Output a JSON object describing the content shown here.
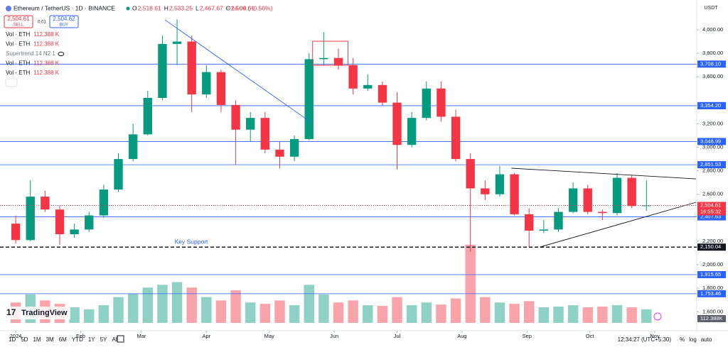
{
  "header": {
    "symbol": "Ethereum / TetherUS · 1D · BINANCE",
    "ohlc": [
      {
        "label": "O",
        "value": "2,518.61"
      },
      {
        "label": "H",
        "value": "2,533.25"
      },
      {
        "label": "L",
        "value": "2,467.67"
      },
      {
        "label": "C",
        "value": "2,504.61"
      }
    ],
    "change": "−14.00 (−0.56%)"
  },
  "trade": {
    "sell_price": "2,504.61",
    "sell": "SELL",
    "spread": "0.01",
    "buy_price": "2,504.62",
    "buy": "BUY"
  },
  "indicators": [
    {
      "name": "Vol · ETH",
      "value": "112.388 K"
    },
    {
      "name": "Vol · ETH",
      "value": "112.388 K"
    },
    {
      "name": "Supertrend 14 N2 1",
      "value": null
    },
    {
      "name": "Vol · ETH",
      "value": "112.388 K"
    },
    {
      "name": "Vol · ETH",
      "value": "112.388 K"
    }
  ],
  "chart_data": {
    "type": "candlestick",
    "currency": "USDT",
    "up_color": "#089981",
    "down_color": "#f23645",
    "x": [
      0,
      7,
      14,
      21,
      28,
      35,
      42,
      49,
      56,
      63,
      70,
      77,
      84,
      91,
      98,
      105,
      112,
      119,
      126,
      133,
      140,
      147,
      154,
      161,
      168,
      175,
      182,
      189,
      196,
      203,
      210,
      217,
      224,
      231,
      238,
      245,
      252,
      259,
      266,
      273,
      280,
      287,
      294,
      301
    ],
    "open": [
      2350,
      2210,
      2580,
      2470,
      2260,
      2300,
      2420,
      2640,
      2900,
      3110,
      3420,
      3880,
      3900,
      3450,
      3640,
      3360,
      3150,
      3250,
      2980,
      2920,
      3070,
      3750,
      3760,
      3700,
      3500,
      3530,
      3380,
      3020,
      3250,
      3500,
      3260,
      2900,
      2650,
      2600,
      2770,
      2430,
      2290,
      2300,
      2450,
      2650,
      2450,
      2440,
      2740,
      2500
    ],
    "high": [
      2420,
      2720,
      2630,
      2500,
      2350,
      2450,
      2680,
      2950,
      3200,
      3480,
      3950,
      4090,
      3950,
      3700,
      3660,
      3400,
      3300,
      3300,
      3050,
      3100,
      3800,
      3980,
      3840,
      3760,
      3620,
      3560,
      3470,
      3300,
      3560,
      3560,
      3320,
      2950,
      2720,
      2840,
      2780,
      2480,
      2380,
      2480,
      2700,
      2680,
      2470,
      2780,
      2760,
      2720
    ],
    "low": [
      2180,
      2200,
      2450,
      2170,
      2230,
      2280,
      2400,
      2620,
      2880,
      3100,
      3400,
      3700,
      3300,
      3420,
      3300,
      2850,
      3050,
      2950,
      2820,
      2880,
      3060,
      3700,
      3660,
      3450,
      3480,
      3350,
      2810,
      3000,
      3230,
      3220,
      2880,
      2110,
      2550,
      2580,
      2420,
      2150,
      2270,
      2280,
      2440,
      2430,
      2380,
      2420,
      2480,
      2460
    ],
    "close": [
      2210,
      2580,
      2470,
      2260,
      2300,
      2420,
      2640,
      2900,
      3110,
      3420,
      3880,
      3900,
      3450,
      3640,
      3360,
      3150,
      3250,
      2980,
      2920,
      3070,
      3750,
      3760,
      3700,
      3500,
      3530,
      3380,
      3020,
      3250,
      3500,
      3260,
      2900,
      2650,
      2600,
      2770,
      2430,
      2290,
      2300,
      2450,
      2650,
      2450,
      2440,
      2740,
      2500,
      2505
    ],
    "volume": [
      300,
      420,
      330,
      280,
      230,
      200,
      260,
      380,
      430,
      520,
      560,
      600,
      520,
      380,
      330,
      480,
      300,
      280,
      330,
      260,
      560,
      420,
      300,
      330,
      260,
      250,
      380,
      260,
      300,
      270,
      360,
      1150,
      380,
      300,
      280,
      320,
      230,
      240,
      260,
      230,
      240,
      260,
      230,
      200
    ],
    "vlim": [
      0,
      1200
    ],
    "volume_label": "112.388K",
    "xlim": [
      -7.5,
      325
    ],
    "xticks": [
      {
        "value": 0,
        "label": "2024"
      },
      {
        "value": 31,
        "label": "Feb"
      },
      {
        "value": 60,
        "label": "Mar"
      },
      {
        "value": 91,
        "label": "Apr"
      },
      {
        "value": 121,
        "label": "May"
      },
      {
        "value": 152,
        "label": "Jun"
      },
      {
        "value": 182,
        "label": "Jul"
      },
      {
        "value": 213,
        "label": "Aug"
      },
      {
        "value": 244,
        "label": "Sep"
      },
      {
        "value": 274,
        "label": "Oct"
      },
      {
        "value": 305,
        "label": "Nov"
      }
    ],
    "ylim": [
      1505,
      4145
    ],
    "yticks": [
      {
        "value": 1600,
        "label": "1,600.00"
      },
      {
        "value": 1800,
        "label": "1,800.00"
      },
      {
        "value": 2000,
        "label": "2,000.00"
      },
      {
        "value": 2200,
        "label": "2,200.00"
      },
      {
        "value": 2600,
        "label": "2,600.00"
      },
      {
        "value": 2800,
        "label": "2,800.00"
      },
      {
        "value": 3000,
        "label": "3,000.00"
      },
      {
        "value": 3200,
        "label": "3,200.00"
      },
      {
        "value": 3600,
        "label": "3,600.00"
      },
      {
        "value": 3800,
        "label": "3,800.00"
      },
      {
        "value": 4000,
        "label": "4,000.00"
      }
    ],
    "levels": [
      {
        "value": 3708.1,
        "label": "3,708.10"
      },
      {
        "value": 3354.23,
        "label": "3,354.23"
      },
      {
        "value": 3354.2,
        "label": "3,354.20"
      },
      {
        "value": 3048.99,
        "label": "3,048.99"
      },
      {
        "value": 2851.53,
        "label": "2,851.53"
      },
      {
        "value": 2407.63,
        "label": "2,407.63"
      },
      {
        "value": 1915.65,
        "label": "1,915.65"
      },
      {
        "value": 1753.46,
        "label": "1,753.46"
      }
    ],
    "key_support": {
      "value": 2150.04,
      "label": "2,150.04",
      "text": "Key Support"
    },
    "last_price": {
      "value": 2504.61,
      "label": "2,504.61",
      "countdown": "16:55:32"
    },
    "trend_lines": [
      {
        "x": [
          71.2,
          140.7
        ],
        "y": [
          4085,
          3215
        ],
        "color": "#2962ff"
      },
      {
        "x": [
          236.6,
          324.7
        ],
        "y": [
          2822,
          2731
        ],
        "color": "#131722"
      },
      {
        "x": [
          250.2,
          324.7
        ],
        "y": [
          2151,
          2532
        ],
        "color": "#131722"
      }
    ],
    "box": {
      "x": [
        141.7,
        158.6
      ],
      "y": [
        3903,
        3698
      ],
      "color": "#f23645"
    }
  },
  "toolbar": {
    "ranges": [
      "1D",
      "5D",
      "1M",
      "3M",
      "6M",
      "YTD",
      "1Y",
      "5Y",
      "All"
    ],
    "time": "12:34:27 (UTC+5:30)",
    "options": [
      "%",
      "log",
      "auto"
    ],
    "brand": "TradingView"
  }
}
